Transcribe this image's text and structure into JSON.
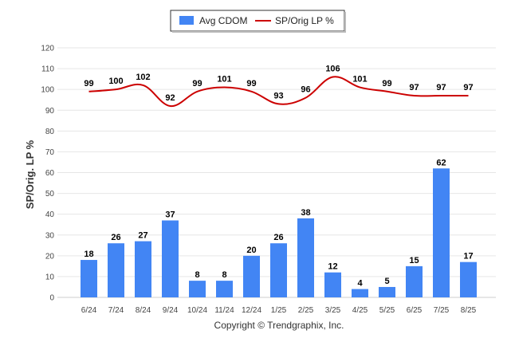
{
  "chart_data": {
    "type": "bar",
    "categories": [
      "6/24",
      "7/24",
      "8/24",
      "9/24",
      "10/24",
      "11/24",
      "12/24",
      "1/25",
      "2/25",
      "3/25",
      "4/25",
      "5/25",
      "6/25",
      "7/25",
      "8/25"
    ],
    "series": [
      {
        "name": "Avg CDOM",
        "type": "bar",
        "color": "#4285f4",
        "values": [
          18,
          26,
          27,
          37,
          8,
          8,
          20,
          26,
          38,
          12,
          4,
          5,
          15,
          62,
          17
        ]
      },
      {
        "name": "SP/Orig LP %",
        "type": "line",
        "color": "#cc0000",
        "values": [
          99,
          100,
          102,
          92,
          99,
          101,
          99,
          93,
          96,
          106,
          101,
          99,
          97,
          97,
          97
        ]
      }
    ],
    "ylabel": "SP/Orig. LP %",
    "xlabel": "",
    "ylim": [
      0,
      120
    ],
    "yticks": [
      0,
      10,
      20,
      30,
      40,
      50,
      60,
      70,
      80,
      90,
      100,
      110,
      120
    ],
    "grid": true,
    "legend_position": "top-center"
  },
  "footer": "Copyright © Trendgraphix, Inc."
}
